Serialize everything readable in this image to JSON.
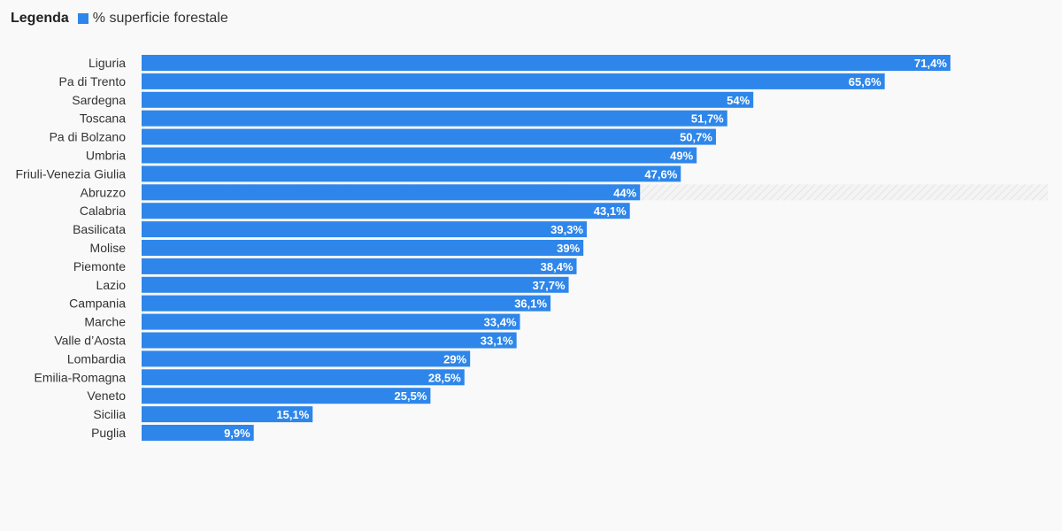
{
  "legend": {
    "title": "Legenda",
    "series_label": "% superficie forestale"
  },
  "colors": {
    "bar": "#2e86ea",
    "highlight_stripe": "#e4e4e4"
  },
  "chart_data": {
    "type": "bar",
    "orientation": "horizontal",
    "title": "",
    "xlabel": "",
    "ylabel": "",
    "xlim": [
      0,
      80
    ],
    "grid": false,
    "legend_position": "top-left",
    "highlighted_category": "Abruzzo",
    "categories": [
      "Liguria",
      "Pa di Trento",
      "Sardegna",
      "Toscana",
      "Pa di Bolzano",
      "Umbria",
      "Friuli-Venezia Giulia",
      "Abruzzo",
      "Calabria",
      "Basilicata",
      "Molise",
      "Piemonte",
      "Lazio",
      "Campania",
      "Marche",
      "Valle d’Aosta",
      "Lombardia",
      "Emilia-Romagna",
      "Veneto",
      "Sicilia",
      "Puglia"
    ],
    "series": [
      {
        "name": "% superficie forestale",
        "values": [
          71.4,
          65.6,
          54,
          51.7,
          50.7,
          49,
          47.6,
          44,
          43.1,
          39.3,
          39,
          38.4,
          37.7,
          36.1,
          33.4,
          33.1,
          29,
          28.5,
          25.5,
          15.1,
          9.9
        ],
        "labels": [
          "71,4%",
          "65,6%",
          "54%",
          "51,7%",
          "50,7%",
          "49%",
          "47,6%",
          "44%",
          "43,1%",
          "39,3%",
          "39%",
          "38,4%",
          "37,7%",
          "36,1%",
          "33,4%",
          "33,1%",
          "29%",
          "28,5%",
          "25,5%",
          "15,1%",
          "9,9%"
        ]
      }
    ]
  }
}
